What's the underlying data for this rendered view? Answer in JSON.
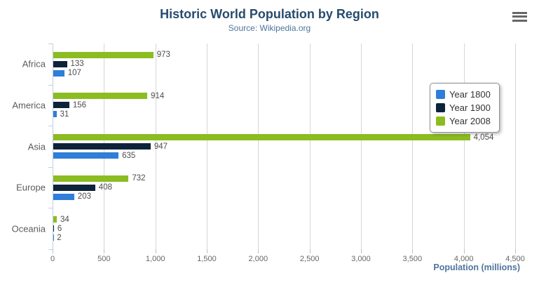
{
  "chart_data": {
    "type": "bar",
    "title": "Historic World Population by Region",
    "subtitle": "Source: Wikipedia.org",
    "xlabel": "Population (millions)",
    "ylabel": "",
    "categories": [
      "Africa",
      "America",
      "Asia",
      "Europe",
      "Oceania"
    ],
    "series": [
      {
        "name": "Year 1800",
        "color": "#2f7ed8",
        "values": [
          107,
          31,
          635,
          203,
          2
        ],
        "labels": [
          "107",
          "31",
          "635",
          "203",
          "2"
        ]
      },
      {
        "name": "Year 1900",
        "color": "#0d233a",
        "values": [
          133,
          156,
          947,
          408,
          6
        ],
        "labels": [
          "133",
          "156",
          "947",
          "408",
          "6"
        ]
      },
      {
        "name": "Year 2008",
        "color": "#8bbc21",
        "values": [
          973,
          914,
          4054,
          732,
          34
        ],
        "labels": [
          "973",
          "914",
          "4,054",
          "732",
          "34"
        ]
      }
    ],
    "bar_display_order_top_to_bottom": [
      "Year 2008",
      "Year 1900",
      "Year 1800"
    ],
    "xlim": [
      0,
      4500
    ],
    "tick_interval": 500,
    "tick_labels": [
      "0",
      "500",
      "1,000",
      "1,500",
      "2,000",
      "2,500",
      "3,000",
      "3,500",
      "4,000",
      "4,500"
    ],
    "grid": true,
    "legend_position": "right",
    "legend_entries": [
      "Year 1800",
      "Year 1900",
      "Year 2008"
    ]
  },
  "export_menu": {
    "icon_name": "hamburger-icon"
  },
  "colors": {
    "title": "#274b6d",
    "subtitle": "#4d759e",
    "axis_title": "#4d759e",
    "gridline": "#d6d6d6",
    "category_axis_line": "#c0d0e0"
  }
}
